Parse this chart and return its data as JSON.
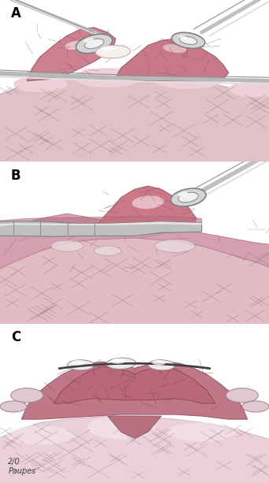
{
  "panel_labels": [
    "A",
    "B",
    "C"
  ],
  "label_fontsize": 12,
  "label_fontweight": "bold",
  "background_color": "#ffffff",
  "figure_width": 3.42,
  "figure_height": 6.13,
  "dpi": 100,
  "signature_text": "2/0\nPaupes",
  "signature_fontsize": 7,
  "tissue_pink_light": "#e8c8ce",
  "tissue_pink_mid": "#d4a0aa",
  "tissue_pink_dark": "#c07888",
  "tissue_red": "#b85060",
  "lung_pink": "#cc8090",
  "lung_dark": "#a05060",
  "instrument_light": "#d8d8d8",
  "instrument_mid": "#b0b0b0",
  "instrument_dark": "#888888",
  "white_highlight": "#f5f0f0",
  "vessel_dark": "#804050",
  "cross_hatch_color": "#8a7070"
}
